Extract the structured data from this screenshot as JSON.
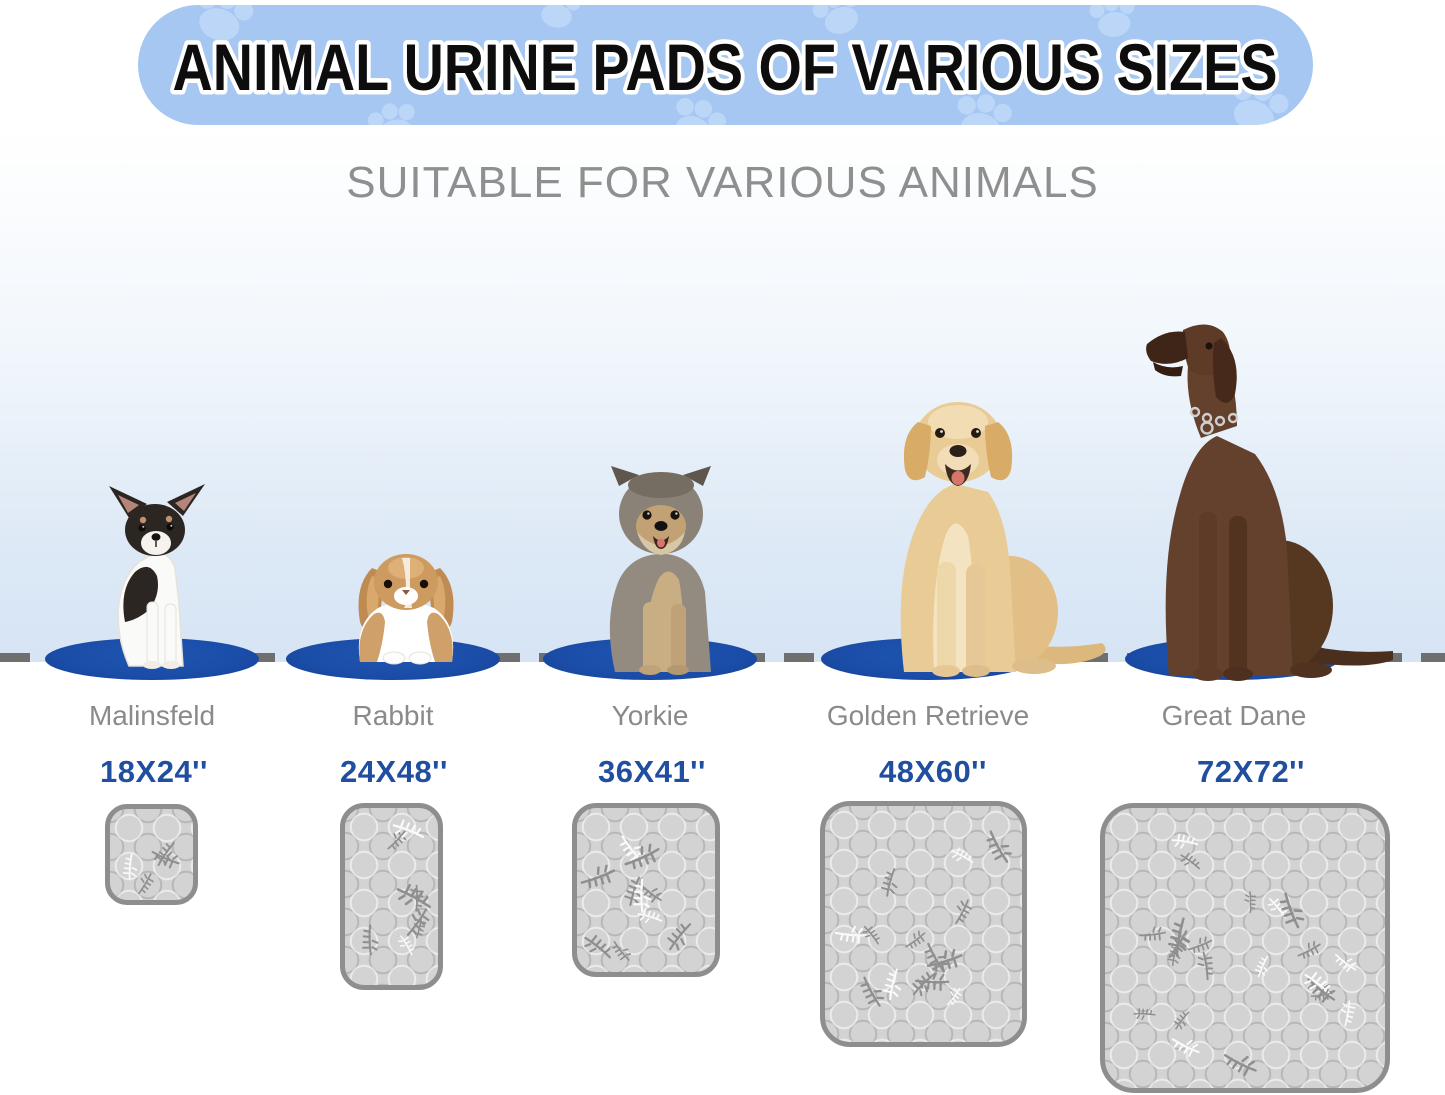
{
  "banner": {
    "title": "ANIMAL URINE PADS OF VARIOUS SIZES",
    "bg_color": "#a5c7f2",
    "paw_color": "#bcd6f8",
    "title_color": "#0d0d0d",
    "title_outline": "#ffffff"
  },
  "subtitle": "SUITABLE FOR VARIOUS ANIMALS",
  "colors": {
    "accent_blue": "#1f4f9e",
    "mat_blue": "#1b4da8",
    "label_gray": "#8a8a8a",
    "dash_gray": "#6f6f6f",
    "pad_fill": "#d3d3d3",
    "pad_border": "#8e8e8e",
    "sky_blue": "#d6e4f4"
  },
  "icons": [
    "paw-print-icon",
    "leaf-icon",
    "chihuahua-image",
    "rabbit-image",
    "yorkie-image",
    "golden-retriever-image",
    "great-dane-image"
  ],
  "animals": [
    {
      "name": "Malinsfeld",
      "size": "18X24''"
    },
    {
      "name": "Rabbit",
      "size": "24X48''"
    },
    {
      "name": "Yorkie",
      "size": "36X41''"
    },
    {
      "name": "Golden Retrieve",
      "size": "48X60''"
    },
    {
      "name": "Great Dane",
      "size": "72X72''"
    }
  ]
}
